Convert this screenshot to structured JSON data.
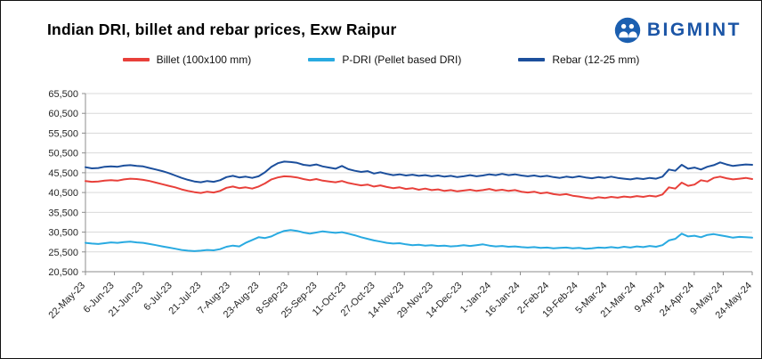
{
  "header": {
    "title": "Indian DRI, billet and rebar prices, Exw Raipur",
    "brand": "BIGMINT"
  },
  "brand_colors": {
    "logo_blue": "#1b55a6"
  },
  "chart_data": {
    "type": "line",
    "title": "Indian DRI, billet and rebar prices, Exw Raipur",
    "xlabel": "",
    "ylabel": "",
    "grid": "horizontal",
    "legend_position": "top",
    "ylim": [
      20500,
      65500
    ],
    "y_ticks": [
      20500,
      25500,
      30500,
      35500,
      40500,
      45500,
      50500,
      55500,
      60500,
      65500
    ],
    "x_tick_labels": [
      "22-May-23",
      "6-Jun-23",
      "21-Jun-23",
      "6-Jul-23",
      "21-Jul-23",
      "7-Aug-23",
      "23-Aug-23",
      "8-Sep-23",
      "25-Sep-23",
      "11-Oct-23",
      "27-Oct-23",
      "14-Nov-23",
      "29-Nov-23",
      "14-Dec-23",
      "1-Jan-24",
      "16-Jan-24",
      "2-Feb-24",
      "19-Feb-24",
      "5-Mar-24",
      "21-Mar-24",
      "9-Apr-24",
      "24-Apr-24",
      "9-May-24",
      "24-May-24"
    ],
    "series": [
      {
        "id": "billet",
        "name": "Billet (100x100 mm)",
        "color": "#e8403a",
        "values": [
          43400,
          43200,
          43300,
          43500,
          43600,
          43500,
          43800,
          44000,
          43900,
          43700,
          43400,
          43000,
          42600,
          42200,
          41800,
          41300,
          40900,
          40600,
          40400,
          40700,
          40500,
          40900,
          41700,
          42000,
          41600,
          41800,
          41500,
          42000,
          42800,
          43800,
          44300,
          44600,
          44500,
          44300,
          43900,
          43600,
          43900,
          43500,
          43300,
          43100,
          43400,
          42900,
          42600,
          42300,
          42500,
          42000,
          42300,
          41900,
          41600,
          41800,
          41400,
          41600,
          41200,
          41500,
          41100,
          41300,
          40900,
          41100,
          40800,
          41000,
          41200,
          40900,
          41100,
          41400,
          41000,
          41200,
          40900,
          41100,
          40700,
          40500,
          40700,
          40300,
          40500,
          40100,
          39900,
          40100,
          39700,
          39500,
          39200,
          39000,
          39300,
          39100,
          39400,
          39200,
          39500,
          39300,
          39600,
          39400,
          39700,
          39500,
          40000,
          41800,
          41500,
          43000,
          42200,
          42500,
          43600,
          43300,
          44200,
          44500,
          44100,
          43800,
          44000,
          44200,
          43900
        ]
      },
      {
        "id": "pdri",
        "name": "P-DRI (Pellet based DRI)",
        "color": "#29aae1",
        "values": [
          27800,
          27600,
          27500,
          27700,
          27900,
          27800,
          28000,
          28100,
          27900,
          27800,
          27500,
          27200,
          26900,
          26600,
          26300,
          26000,
          25800,
          25700,
          25800,
          26000,
          25900,
          26200,
          26800,
          27100,
          26900,
          27800,
          28500,
          29200,
          29000,
          29400,
          30200,
          30800,
          31000,
          30800,
          30400,
          30100,
          30400,
          30700,
          30500,
          30300,
          30500,
          30100,
          29700,
          29200,
          28800,
          28400,
          28100,
          27800,
          27600,
          27700,
          27400,
          27200,
          27300,
          27100,
          27200,
          27000,
          27100,
          26900,
          27000,
          27200,
          27000,
          27200,
          27400,
          27100,
          26900,
          27000,
          26800,
          26900,
          26700,
          26600,
          26700,
          26500,
          26600,
          26400,
          26500,
          26600,
          26400,
          26500,
          26300,
          26400,
          26600,
          26500,
          26700,
          26500,
          26800,
          26600,
          26900,
          26700,
          27000,
          26800,
          27200,
          28400,
          28800,
          30100,
          29400,
          29600,
          29200,
          29800,
          30000,
          29700,
          29400,
          29100,
          29300,
          29200,
          29100
        ]
      },
      {
        "id": "rebar",
        "name": "Rebar (12-25 mm)",
        "color": "#1c4f9c",
        "values": [
          46900,
          46600,
          46700,
          47000,
          47100,
          47000,
          47300,
          47400,
          47200,
          47100,
          46700,
          46300,
          45900,
          45400,
          44800,
          44200,
          43700,
          43300,
          43100,
          43400,
          43200,
          43600,
          44400,
          44700,
          44300,
          44500,
          44200,
          44600,
          45600,
          47000,
          47900,
          48300,
          48200,
          48000,
          47500,
          47300,
          47600,
          47100,
          46800,
          46500,
          47200,
          46400,
          46000,
          45700,
          45900,
          45300,
          45600,
          45200,
          44900,
          45100,
          44800,
          45000,
          44700,
          44900,
          44600,
          44800,
          44500,
          44700,
          44400,
          44600,
          44900,
          44600,
          44800,
          45100,
          44900,
          45200,
          44900,
          45100,
          44800,
          44600,
          44800,
          44500,
          44700,
          44400,
          44200,
          44500,
          44300,
          44600,
          44300,
          44100,
          44400,
          44200,
          44500,
          44200,
          44000,
          43800,
          44100,
          43900,
          44200,
          44000,
          44500,
          46300,
          46000,
          47500,
          46500,
          46800,
          46300,
          47000,
          47400,
          48100,
          47600,
          47200,
          47400,
          47600,
          47500
        ]
      }
    ]
  }
}
